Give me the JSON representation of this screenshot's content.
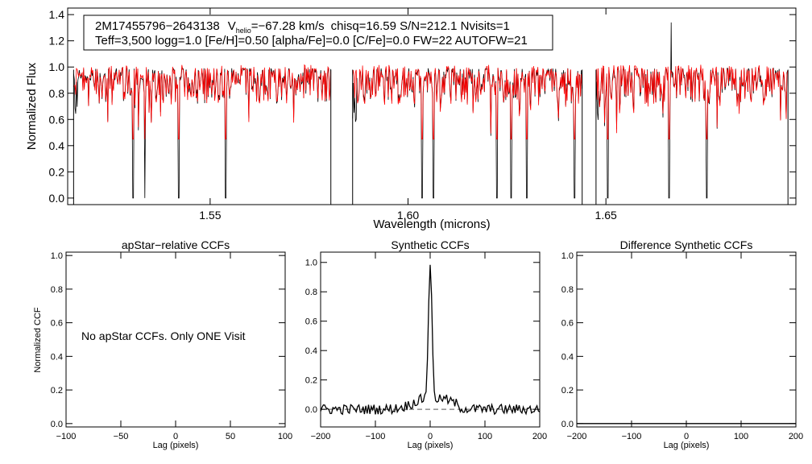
{
  "chart_data": [
    {
      "type": "line",
      "panel": "spectrum",
      "xlabel": "Wavelength (microns)",
      "ylabel": "Normalized Flux",
      "xlim": [
        1.514,
        1.698
      ],
      "ylim": [
        -0.05,
        1.45
      ],
      "x_ticks": [
        1.55,
        1.6,
        1.65
      ],
      "x_tick_labels": [
        "1.55",
        "1.60",
        "1.65"
      ],
      "y_ticks": [
        0.0,
        0.2,
        0.4,
        0.6,
        0.8,
        1.0,
        1.2,
        1.4
      ],
      "y_tick_labels": [
        "0.0",
        "0.2",
        "0.4",
        "0.6",
        "0.8",
        "1.0",
        "1.2",
        "1.4"
      ],
      "annotation": {
        "star_id": "2M17455796−2643138",
        "v_label": "V",
        "v_sub": "helio",
        "v_value": "=−67.28 km/s",
        "rest_line1": "chisq=16.59  S/N=212.1  Nvisits=1",
        "line2": "Teff=3,500 logg=1.0 [Fe/H]=0.50 [alpha/Fe]=0.0 [C/Fe]=0.0 FW=22 AUTOFW=21"
      },
      "series": [
        {
          "name": "observed spectrum",
          "color": "#000000"
        },
        {
          "name": "synthetic model",
          "color": "#ff0000"
        }
      ],
      "chips": [
        [
          1.5155,
          1.5805
        ],
        [
          1.586,
          1.644
        ],
        [
          1.6475,
          1.696
        ]
      ],
      "deep_lines": [
        1.5305,
        1.5335,
        1.542,
        1.554,
        1.6035,
        1.6065,
        1.6225,
        1.626,
        1.63,
        1.642,
        1.6505,
        1.666,
        1.6755
      ]
    },
    {
      "type": "line",
      "panel": "apstar",
      "title": "apStar−relative CCFs",
      "xlabel": "Lag (pixels)",
      "ylabel": "Normalized CCF",
      "xlim": [
        -100,
        100
      ],
      "ylim": [
        -0.02,
        1.02
      ],
      "x_ticks": [
        -100,
        -50,
        0,
        50,
        100
      ],
      "x_tick_labels": [
        "−100",
        "−50",
        "0",
        "50",
        "100"
      ],
      "y_ticks": [
        0.0,
        0.2,
        0.4,
        0.6,
        0.8,
        1.0
      ],
      "y_tick_labels": [
        "0.0",
        "0.2",
        "0.4",
        "0.6",
        "0.8",
        "1.0"
      ],
      "message": "No apStar CCFs.  Only ONE Visit"
    },
    {
      "type": "line",
      "panel": "synthetic",
      "title": "Synthetic CCFs",
      "xlabel": "Lag (pixels)",
      "xlim": [
        -200,
        200
      ],
      "ylim": [
        -0.12,
        1.07
      ],
      "x_ticks": [
        -200,
        -100,
        0,
        100,
        200
      ],
      "x_tick_labels": [
        "−200",
        "−100",
        "0",
        "100",
        "200"
      ],
      "y_ticks": [
        0.0,
        0.2,
        0.4,
        0.6,
        0.8,
        1.0
      ],
      "y_tick_labels": [
        "0.0",
        "0.2",
        "0.4",
        "0.6",
        "0.8",
        "1.0"
      ],
      "peak_lag": 0,
      "peak_value": 1.0,
      "baseline": 0.0,
      "baseline_style": "dashed"
    },
    {
      "type": "line",
      "panel": "difference",
      "title": "Difference Synthetic CCFs",
      "xlabel": "Lag (pixels)",
      "xlim": [
        -200,
        200
      ],
      "ylim": [
        -0.02,
        1.02
      ],
      "x_ticks": [
        -200,
        -100,
        0,
        100,
        200
      ],
      "x_tick_labels": [
        "−200",
        "−100",
        "0",
        "100",
        "200"
      ],
      "y_ticks": [
        0.0,
        0.2,
        0.4,
        0.6,
        0.8,
        1.0
      ],
      "y_tick_labels": [
        "0.0",
        "0.2",
        "0.4",
        "0.6",
        "0.8",
        "1.0"
      ],
      "flat_value": 0.0
    }
  ]
}
